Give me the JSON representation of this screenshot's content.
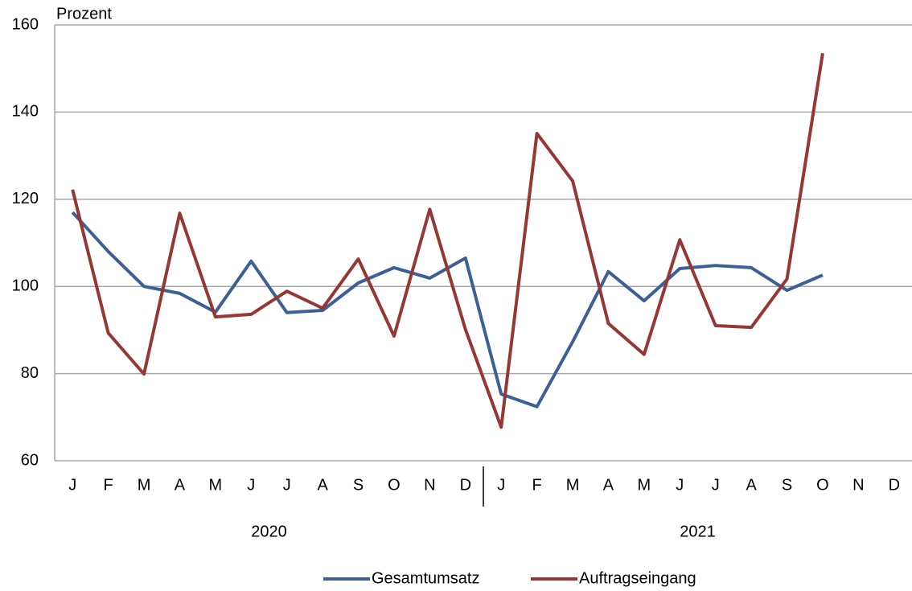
{
  "chart_data": {
    "type": "line",
    "y_axis_label": "Prozent",
    "categories": [
      "J",
      "F",
      "M",
      "A",
      "M",
      "J",
      "J",
      "A",
      "S",
      "O",
      "N",
      "D",
      "J",
      "F",
      "M",
      "A",
      "M",
      "J",
      "J",
      "A",
      "S",
      "O",
      "N",
      "D"
    ],
    "category_groups": [
      "2020",
      "2021"
    ],
    "series": [
      {
        "name": "Gesamtumsatz",
        "color": "#3b6095",
        "values": [
          117,
          108,
          100,
          98.4,
          94.1,
          105.8,
          94,
          94.5,
          100.8,
          104.3,
          101.9,
          106.5,
          75.3,
          72.4,
          87.3,
          103.4,
          96.7,
          104.1,
          104.8,
          104.3,
          99.1,
          102.6,
          null,
          null
        ]
      },
      {
        "name": "Auftragseingang",
        "color": "#953735",
        "values": [
          122.2,
          89.3,
          79.9,
          116.8,
          93,
          93.6,
          98.9,
          95,
          106.3,
          88.6,
          117.7,
          90.1,
          67.7,
          135.1,
          124.2,
          91.5,
          84.4,
          110.7,
          91,
          90.6,
          101.7,
          153.5,
          null,
          null
        ]
      }
    ],
    "ylim": [
      60,
      160
    ],
    "yticks": [
      60,
      80,
      100,
      120,
      140,
      160
    ],
    "grid": true,
    "legend": "bottom"
  }
}
